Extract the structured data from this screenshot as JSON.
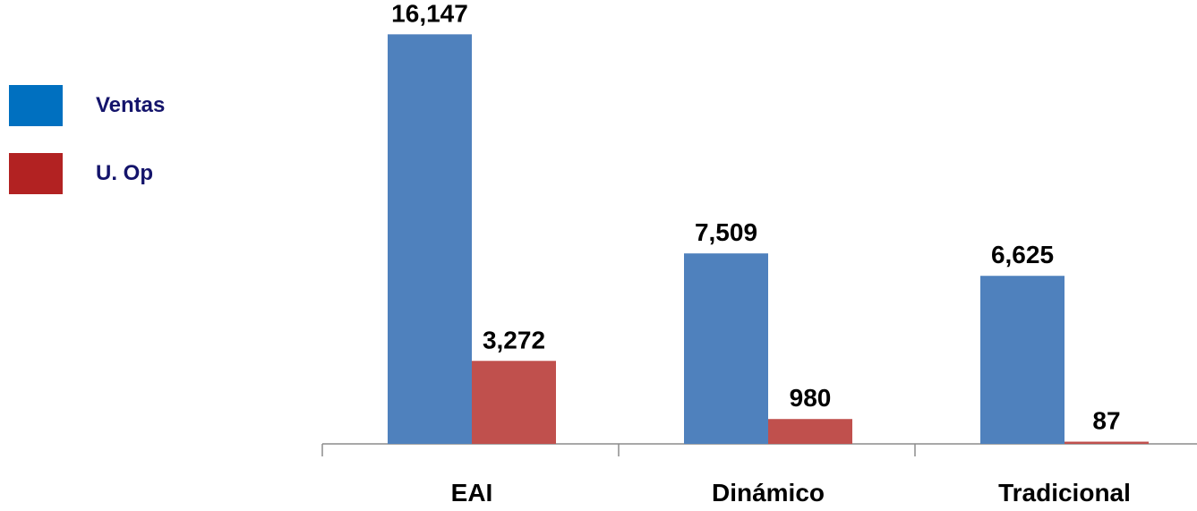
{
  "chart_data": {
    "type": "bar",
    "title": "",
    "xlabel": "",
    "ylabel": "",
    "categories": [
      "EAI",
      "Dinámico",
      "Tradicional"
    ],
    "series": [
      {
        "name": "Ventas",
        "values": [
          16147,
          7509,
          6625
        ],
        "labels": [
          "16,147",
          "7,509",
          "6,625"
        ],
        "color": "#4f81bd"
      },
      {
        "name": "U. Op",
        "values": [
          3272,
          980,
          87
        ],
        "labels": [
          "3,272",
          "980",
          "87"
        ],
        "color": "#c0504d"
      }
    ],
    "ylim": [
      0,
      17500
    ],
    "grid": false,
    "legend": "left",
    "legend_colors": [
      "#0070c0",
      "#b22222"
    ]
  }
}
